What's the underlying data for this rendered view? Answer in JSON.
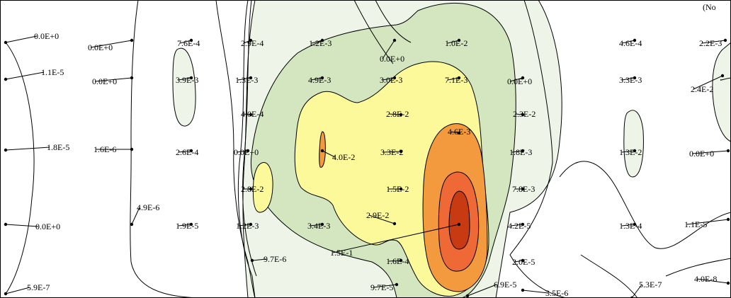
{
  "chart_data": {
    "type": "contour",
    "levels": [
      {
        "name": "band-1",
        "color": "#eef5e8"
      },
      {
        "name": "band-2",
        "color": "#d3e6c0"
      },
      {
        "name": "band-3",
        "color": "#fbf99a"
      },
      {
        "name": "band-4",
        "color": "#f39a3e"
      },
      {
        "name": "band-5",
        "color": "#ef6936"
      },
      {
        "name": "band-6",
        "color": "#c73a12"
      }
    ],
    "corner_label": "(No",
    "labels": [
      {
        "text": "0.0E+0",
        "value": 0
      },
      {
        "text": "0.0E+0",
        "value": 0
      },
      {
        "text": "7.6E-4",
        "value": 0.00076
      },
      {
        "text": "2.9E-4",
        "value": 0.00029
      },
      {
        "text": "1.2E-3",
        "value": 0.0012
      },
      {
        "text": "0.0E+0",
        "value": 0
      },
      {
        "text": "1.0E-2",
        "value": 0.01
      },
      {
        "text": "4.6E-4",
        "value": 0.00046
      },
      {
        "text": "2.2E-3",
        "value": 0.0022
      },
      {
        "text": "1.1E-5",
        "value": 1.1e-05
      },
      {
        "text": "0.0E+0",
        "value": 0
      },
      {
        "text": "3.9E-3",
        "value": 0.0039
      },
      {
        "text": "1.3E-3",
        "value": 0.0013
      },
      {
        "text": "4.9E-3",
        "value": 0.0049
      },
      {
        "text": "3.0E-3",
        "value": 0.003
      },
      {
        "text": "7.1E-3",
        "value": 0.0071
      },
      {
        "text": "0.0E+0",
        "value": 0
      },
      {
        "text": "3.3E-3",
        "value": 0.0033
      },
      {
        "text": "2.4E-2",
        "value": 0.024
      },
      {
        "text": "4.0E-4",
        "value": 0.0004
      },
      {
        "text": "2.8E-2",
        "value": 0.028
      },
      {
        "text": "4.6E-3",
        "value": 0.0046
      },
      {
        "text": "2.3E-2",
        "value": 0.023
      },
      {
        "text": "1.8E-5",
        "value": 1.8e-05
      },
      {
        "text": "1.6E-6",
        "value": 1.6e-06
      },
      {
        "text": "2.6E-4",
        "value": 0.00026
      },
      {
        "text": "0.0E+0",
        "value": 0
      },
      {
        "text": "4.0E-2",
        "value": 0.04
      },
      {
        "text": "3.3E-2",
        "value": 0.033
      },
      {
        "text": "1.8E-3",
        "value": 0.0018
      },
      {
        "text": "1.3E-2",
        "value": 0.013
      },
      {
        "text": "0.0E+0",
        "value": 0
      },
      {
        "text": "2.8E-2",
        "value": 0.028
      },
      {
        "text": "1.5E-2",
        "value": 0.015
      },
      {
        "text": "7.8E-3",
        "value": 0.0078
      },
      {
        "text": "4.9E-6",
        "value": 4.9e-06
      },
      {
        "text": "2.9E-2",
        "value": 0.029
      },
      {
        "text": "0.0E+0",
        "value": 0
      },
      {
        "text": "1.9E-5",
        "value": 1.9e-05
      },
      {
        "text": "1.2E-3",
        "value": 0.0012
      },
      {
        "text": "3.4E-3",
        "value": 0.0034
      },
      {
        "text": "4.2E-5",
        "value": 4.2e-05
      },
      {
        "text": "1.3E-4",
        "value": 0.00013
      },
      {
        "text": "1.1E-5",
        "value": 1.1e-05
      },
      {
        "text": "9.7E-6",
        "value": 9.7e-06
      },
      {
        "text": "1.5E-1",
        "value": 0.15
      },
      {
        "text": "1.6E-4",
        "value": 0.00016
      },
      {
        "text": "2.0E-5",
        "value": 2e-05
      },
      {
        "text": "4.0E-8",
        "value": 4e-08
      },
      {
        "text": "5.9E-7",
        "value": 5.9e-07
      },
      {
        "text": "9.7E-5",
        "value": 9.7e-05
      },
      {
        "text": "6.9E-5",
        "value": 6.9e-05
      },
      {
        "text": "3.5E-6",
        "value": 3.5e-06
      },
      {
        "text": "5.3E-7",
        "value": 5.3e-07
      }
    ]
  }
}
